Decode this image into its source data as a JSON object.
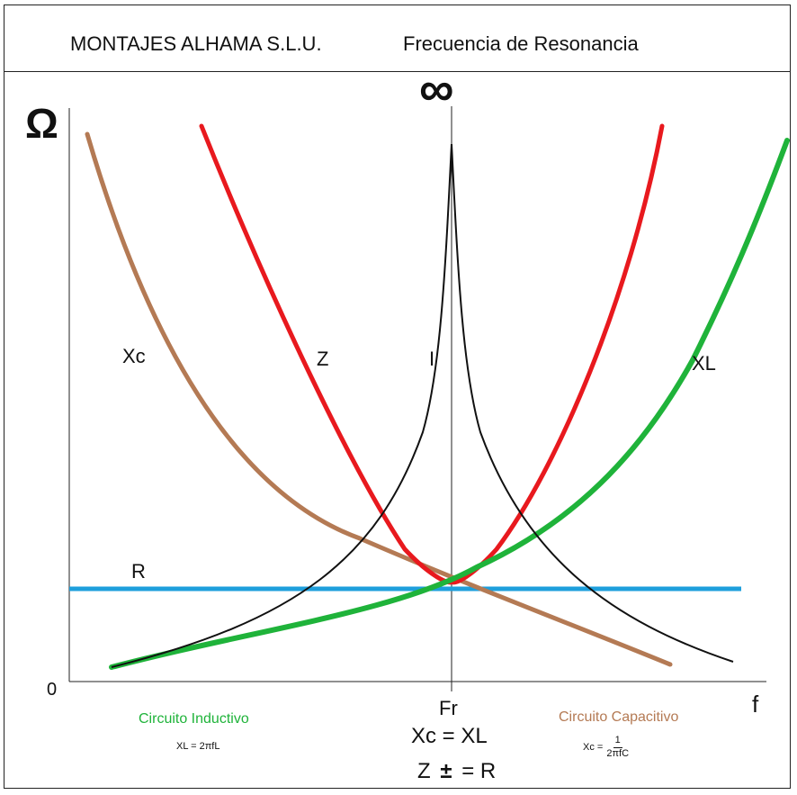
{
  "header": {
    "company": "MONTAJES ALHAMA S.L.U.",
    "title": "Frecuencia de Resonancia"
  },
  "axes": {
    "y_symbol": "Ω",
    "infinity_symbol": "∞",
    "origin": "0",
    "x_label": "f"
  },
  "curves": {
    "xc": {
      "label": "Xc",
      "color": "#b47a54"
    },
    "z": {
      "label": "Z",
      "color": "#e8191e"
    },
    "i": {
      "label": "I",
      "color": "#111111"
    },
    "xl": {
      "label": "XL",
      "color": "#1fb33a"
    },
    "r": {
      "label": "R",
      "color": "#1e9fdc"
    }
  },
  "bottom": {
    "fr": "Fr",
    "equation1": "Xc = XL",
    "equation2_left": "Z",
    "equation2_pm": "±",
    "equation2_right": "= R",
    "inductive_label": "Circuito Inductivo",
    "inductive_color": "#1fb33a",
    "inductive_formula": "XL = 2πfL",
    "capacitive_label": "Circuito Capacitivo",
    "capacitive_color": "#b47a54",
    "capacitive_formula_prefix": "Xc =",
    "capacitive_formula_num": "1",
    "capacitive_formula_den": "2πfC"
  }
}
